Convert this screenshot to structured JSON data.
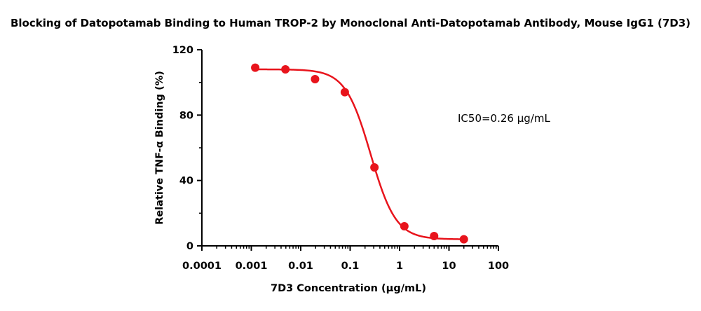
{
  "chart_data": {
    "type": "scatter",
    "title": "Blocking of Datopotamab Binding to Human TROP-2 by Monoclonal Anti-Datopotamab Antibody, Mouse IgG1 (7D3)",
    "xlabel": "7D3 Concentration (µg/mL)",
    "ylabel": "Relative TNF-α Binding (%)",
    "x_scale": "log",
    "xlim": [
      0.0001,
      100
    ],
    "ylim": [
      0,
      120
    ],
    "x_ticks": [
      0.0001,
      0.001,
      0.01,
      0.1,
      1,
      10,
      100
    ],
    "x_tick_labels": [
      "0.0001",
      "0.001",
      "0.01",
      "0.1",
      "1",
      "10",
      "100"
    ],
    "y_ticks": [
      0,
      40,
      80,
      120
    ],
    "y_tick_labels": [
      "0",
      "40",
      "80",
      "120"
    ],
    "grid": false,
    "annotation": "IC50=0.26 µg/mL",
    "color": "#e8141c",
    "series": [
      {
        "x": [
          0.0012,
          0.0049,
          0.0195,
          0.078,
          0.31,
          1.25,
          5,
          20
        ],
        "y": [
          109,
          108,
          102,
          94,
          48,
          12,
          6,
          4
        ],
        "fit": {
          "model": "4PL",
          "top": 108,
          "bottom": 4,
          "ic50": 0.26,
          "hill": 1.7
        }
      }
    ]
  }
}
